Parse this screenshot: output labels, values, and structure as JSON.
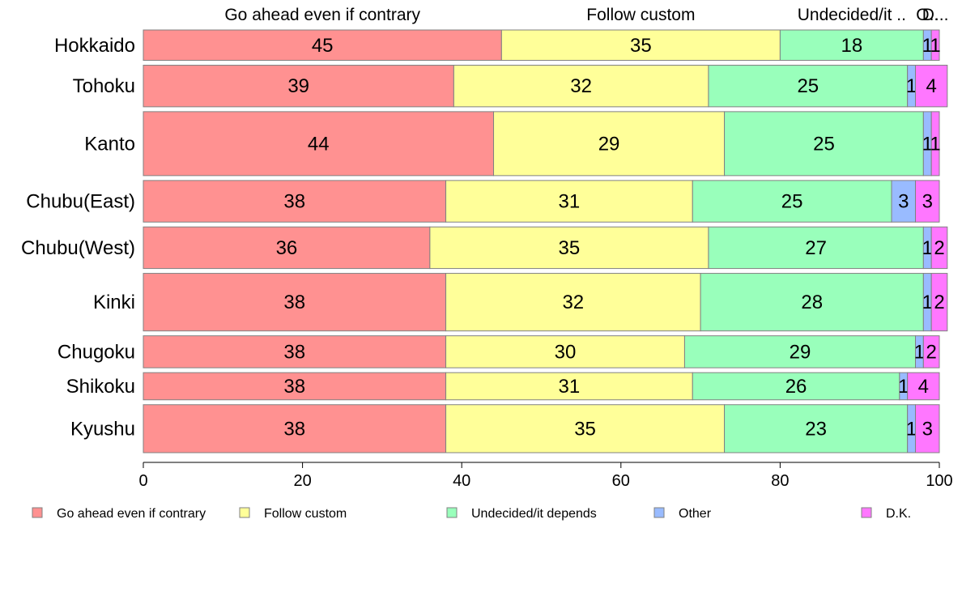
{
  "chart_data": {
    "type": "bar",
    "orientation": "horizontal",
    "stacked": true,
    "title": "",
    "xlabel": "",
    "ylabel": "",
    "xlim": [
      0,
      100
    ],
    "x_ticks": [
      0,
      20,
      40,
      60,
      80,
      100
    ],
    "grid": false,
    "legend_position": "bottom",
    "categories": [
      "Hokkaido",
      "Tohoku",
      "Kanto",
      "Chubu(East)",
      "Chubu(West)",
      "Kinki",
      "Chugoku",
      "Shikoku",
      "Kyushu"
    ],
    "category_weights": [
      0.95,
      1.3,
      2.0,
      1.3,
      1.3,
      1.8,
      1.0,
      0.85,
      1.5
    ],
    "series": [
      {
        "name": "Go ahead even if contrary",
        "color": "#ff9191",
        "values": [
          45,
          39,
          44,
          38,
          36,
          38,
          38,
          38,
          38
        ],
        "labels": [
          "45",
          "39",
          "44",
          "38",
          "36",
          "38",
          "38",
          "38",
          "38"
        ]
      },
      {
        "name": "Follow custom",
        "color": "#ffff99",
        "values": [
          35,
          32,
          29,
          31,
          35,
          32,
          30,
          31,
          35
        ],
        "labels": [
          "35",
          "32",
          "29",
          "31",
          "35",
          "32",
          "30",
          "31",
          "35"
        ]
      },
      {
        "name": "Undecided/it depends",
        "color": "#99ffbb",
        "values": [
          18,
          25,
          25,
          25,
          27,
          28,
          29,
          26,
          23
        ],
        "labels": [
          "18",
          "25",
          "25",
          "25",
          "27",
          "28",
          "29",
          "26",
          "23"
        ]
      },
      {
        "name": "Other",
        "color": "#99bbff",
        "values": [
          1,
          1,
          1,
          3,
          1,
          1,
          1,
          1,
          1
        ],
        "labels": [
          "1",
          "1",
          "1",
          "3",
          "1",
          "1",
          "1",
          "1",
          "1"
        ]
      },
      {
        "name": "D.K.",
        "color": "#ff77ff",
        "values": [
          1,
          4,
          1,
          3,
          2,
          2,
          2,
          4,
          3
        ],
        "labels": [
          "1",
          "4",
          "1",
          "3",
          "2",
          "2",
          "2",
          "4",
          "3"
        ]
      }
    ],
    "top_labels": [
      "Go ahead even if contrary",
      "Follow custom",
      "Undecided/it ..",
      "O..",
      "D..."
    ]
  }
}
